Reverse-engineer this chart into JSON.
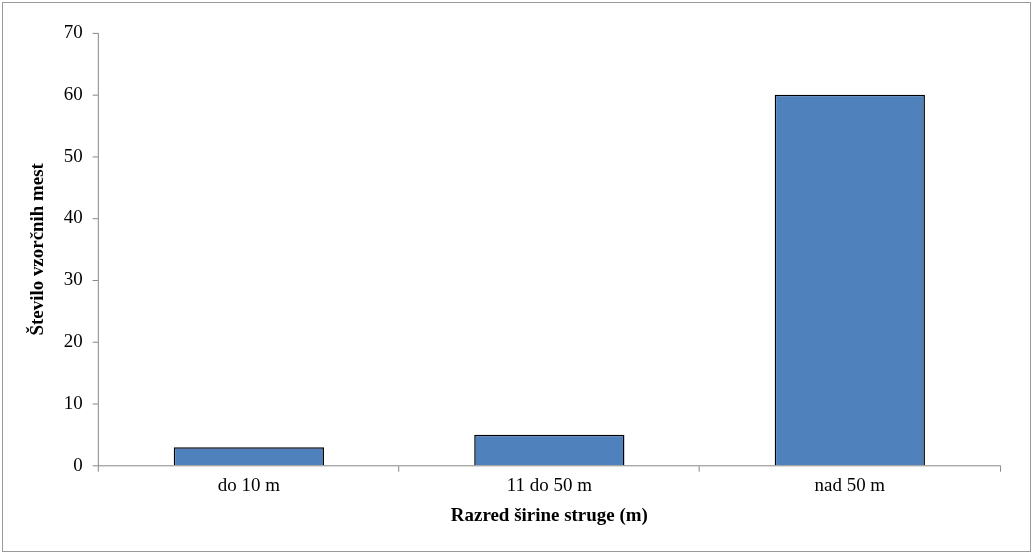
{
  "chart_data": {
    "type": "bar",
    "xlabel": "Razred širine struge (m)",
    "ylabel": "Število vzorčnih mest",
    "categories": [
      "do 10 m",
      "11 do 50 m",
      "nad 50 m"
    ],
    "values": [
      3,
      5,
      60
    ],
    "color": "#4f81bd",
    "ylim": [
      0,
      70
    ],
    "yticks": [
      0,
      10,
      20,
      30,
      40,
      50,
      60,
      70
    ],
    "grid": false
  }
}
